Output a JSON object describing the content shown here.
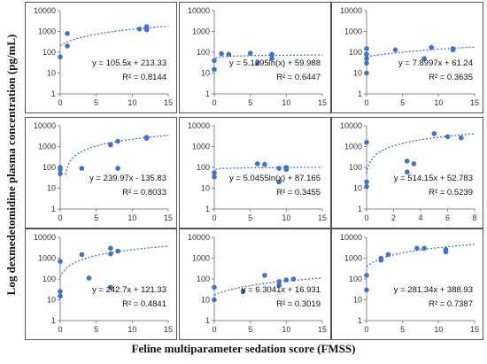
{
  "figure": {
    "ylabel": "Log dexmedetomidine plasma concentration (pg/mL)",
    "xlabel": "Feline multiparameter sedation score (FMSS)"
  },
  "colors": {
    "point": "#4472c4",
    "trend": "#4472c4",
    "axis": "#888888",
    "panel_border": "#555555"
  },
  "chart_data": [
    {
      "type": "scatter",
      "yscale": "log",
      "ylim": [
        1,
        10000
      ],
      "xlim": [
        0,
        15
      ],
      "xticks": [
        "0",
        "5",
        "10",
        "15"
      ],
      "yticks": [
        "1",
        "10",
        "100",
        "1000",
        "10000"
      ],
      "trend": {
        "kind": "linear",
        "m": 105.5,
        "b": 213.33
      },
      "equation": "y = 105.5x + 213.33",
      "r2": "R² = 0.8144",
      "points": [
        [
          0,
          60
        ],
        [
          1,
          200
        ],
        [
          1,
          800
        ],
        [
          11,
          1300
        ],
        [
          12,
          1400
        ],
        [
          12,
          1300
        ],
        [
          12,
          1700
        ],
        [
          12,
          1200
        ]
      ]
    },
    {
      "type": "scatter",
      "yscale": "log",
      "ylim": [
        1,
        10000
      ],
      "xlim": [
        0,
        15
      ],
      "xticks": [
        "0",
        "5",
        "10",
        "15"
      ],
      "yticks": [
        "1",
        "10",
        "100",
        "1000",
        "10000"
      ],
      "trend": {
        "kind": "log",
        "m": 5.1295,
        "b": 59.988
      },
      "equation": "y = 5.1295ln(x) + 59.988",
      "r2": "R² = 0.6447",
      "points": [
        [
          0,
          15
        ],
        [
          0,
          40
        ],
        [
          1,
          85
        ],
        [
          2,
          80
        ],
        [
          5,
          90
        ],
        [
          6,
          30
        ],
        [
          8,
          80
        ],
        [
          8,
          50
        ],
        [
          8,
          75
        ]
      ]
    },
    {
      "type": "scatter",
      "yscale": "log",
      "ylim": [
        1,
        10000
      ],
      "xlim": [
        0,
        15
      ],
      "xticks": [
        "0",
        "5",
        "10",
        "15"
      ],
      "yticks": [
        "1",
        "10",
        "100",
        "1000",
        "10000"
      ],
      "trend": {
        "kind": "linear",
        "m": 7.8997,
        "b": 61.24
      },
      "equation": "y = 7.8997x + 61.24",
      "r2": "R² = 0.3635",
      "points": [
        [
          0,
          10
        ],
        [
          0,
          30
        ],
        [
          0,
          50
        ],
        [
          0,
          80
        ],
        [
          0,
          150
        ],
        [
          4,
          130
        ],
        [
          8,
          50
        ],
        [
          9,
          170
        ],
        [
          12,
          150
        ],
        [
          12,
          130
        ]
      ]
    },
    {
      "type": "scatter",
      "yscale": "log",
      "ylim": [
        1,
        10000
      ],
      "xlim": [
        0,
        15
      ],
      "xticks": [
        "0",
        "5",
        "10",
        "15"
      ],
      "yticks": [
        "1",
        "10",
        "100",
        "1000",
        "10000"
      ],
      "trend": {
        "kind": "linear",
        "m": 239.97,
        "b": -135.83
      },
      "equation": "y = 239.97x - 135.83",
      "r2": "R² = 0.8033",
      "points": [
        [
          0,
          50
        ],
        [
          0,
          80
        ],
        [
          0,
          100
        ],
        [
          3,
          90
        ],
        [
          7,
          1200
        ],
        [
          8,
          1800
        ],
        [
          8,
          90
        ],
        [
          12,
          2800
        ],
        [
          12,
          2500
        ]
      ]
    },
    {
      "type": "scatter",
      "yscale": "log",
      "ylim": [
        1,
        10000
      ],
      "xlim": [
        0,
        15
      ],
      "xticks": [
        "0",
        "5",
        "10",
        "15"
      ],
      "yticks": [
        "1",
        "10",
        "100",
        "1000",
        "10000"
      ],
      "trend": {
        "kind": "log",
        "m": 5.0455,
        "b": 87.165
      },
      "equation": "y = 5.0455ln(x) + 87.165",
      "r2": "R² = 0.3455",
      "points": [
        [
          0,
          35
        ],
        [
          0,
          55
        ],
        [
          6,
          150
        ],
        [
          7,
          140
        ],
        [
          9,
          20
        ],
        [
          9,
          90
        ],
        [
          10,
          100
        ],
        [
          10,
          80
        ]
      ]
    },
    {
      "type": "scatter",
      "yscale": "log",
      "ylim": [
        1,
        10000
      ],
      "xlim": [
        0,
        8
      ],
      "xticks": [
        "0",
        "2",
        "4",
        "6",
        "8"
      ],
      "yticks": [
        "1",
        "10",
        "100",
        "1000",
        "10000"
      ],
      "trend": {
        "kind": "linear",
        "m": 514.15,
        "b": 52.783
      },
      "equation": "y = 514.15x + 52.783",
      "r2": "R² = 0.5239",
      "points": [
        [
          0,
          1600
        ],
        [
          0,
          20
        ],
        [
          0,
          12
        ],
        [
          3,
          200
        ],
        [
          3,
          60
        ],
        [
          3.5,
          150
        ],
        [
          5,
          4200
        ],
        [
          6,
          3000
        ],
        [
          7,
          2600
        ]
      ]
    },
    {
      "type": "scatter",
      "yscale": "log",
      "ylim": [
        1,
        10000
      ],
      "xlim": [
        0,
        15
      ],
      "xticks": [
        "0",
        "5",
        "10",
        "15"
      ],
      "yticks": [
        "1",
        "10",
        "100",
        "1000",
        "10000"
      ],
      "trend": {
        "kind": "linear",
        "m": 242.7,
        "b": 121.33
      },
      "equation": "y = 242.7x + 121.33",
      "r2": "R² = 0.4841",
      "points": [
        [
          0,
          700
        ],
        [
          0,
          25
        ],
        [
          0,
          15
        ],
        [
          3,
          1500
        ],
        [
          4,
          110
        ],
        [
          7,
          40
        ],
        [
          7,
          3000
        ],
        [
          7,
          1600
        ],
        [
          8,
          2200
        ]
      ]
    },
    {
      "type": "scatter",
      "yscale": "log",
      "ylim": [
        1,
        10000
      ],
      "xlim": [
        0,
        15
      ],
      "xticks": [
        "0",
        "5",
        "10",
        "15"
      ],
      "yticks": [
        "1",
        "10",
        "100",
        "1000",
        "10000"
      ],
      "trend": {
        "kind": "linear",
        "m": 6.3041,
        "b": 16.931
      },
      "equation": "y = 6.3041x + 16.931",
      "r2": "R² = 0.3019",
      "points": [
        [
          0,
          40
        ],
        [
          0,
          10
        ],
        [
          4,
          25
        ],
        [
          7,
          150
        ],
        [
          9,
          50
        ],
        [
          9,
          75
        ],
        [
          10,
          90
        ],
        [
          11,
          100
        ]
      ]
    },
    {
      "type": "scatter",
      "yscale": "log",
      "ylim": [
        1,
        10000
      ],
      "xlim": [
        0,
        15
      ],
      "xticks": [
        "0",
        "5",
        "10",
        "15"
      ],
      "yticks": [
        "1",
        "10",
        "100",
        "1000",
        "10000"
      ],
      "trend": {
        "kind": "linear",
        "m": 281.34,
        "b": 388.93
      },
      "equation": "y = 281.34x + 388.93",
      "r2": "R² = 0.7387",
      "points": [
        [
          0,
          150
        ],
        [
          0,
          30
        ],
        [
          2,
          1000
        ],
        [
          2,
          800
        ],
        [
          3,
          1500
        ],
        [
          7,
          3000
        ],
        [
          8,
          3000
        ],
        [
          11,
          2600
        ],
        [
          11,
          2000
        ]
      ]
    }
  ]
}
